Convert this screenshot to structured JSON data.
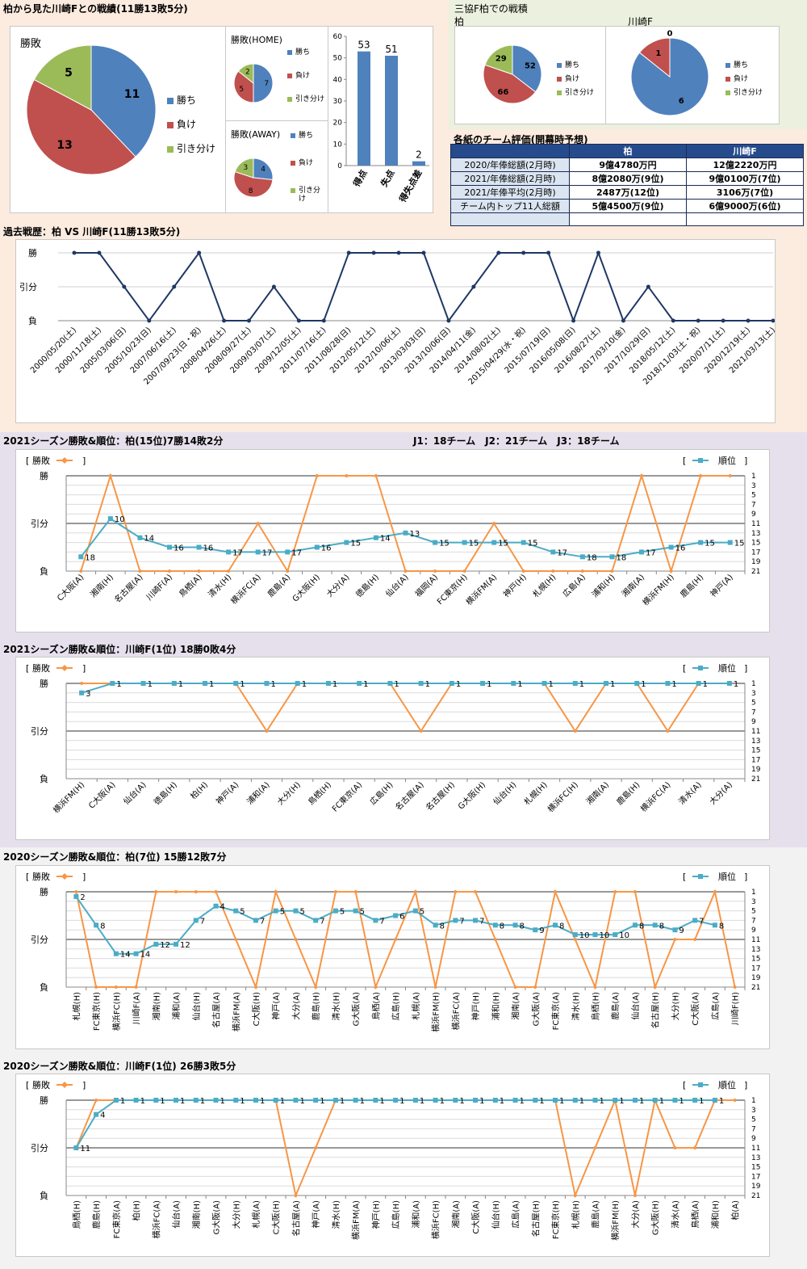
{
  "colors": {
    "win": "#4f81bd",
    "loss": "#c0504d",
    "draw": "#9bbb59",
    "result_line": "#f79646",
    "rank_line": "#4bacc6",
    "h2h_line": "#1f3864",
    "bar": "#4f81bd"
  },
  "header": {
    "title_left": "柏から見た川崎Fとの戦績(11勝13敗5分)",
    "title_right": "三協F柏での戦積",
    "kashiwa_label": "柏",
    "kawasaki_label": "川崎F"
  },
  "eval": {
    "title": "各紙のチーム評価(開幕時予想)",
    "headers": [
      "柏",
      "川崎F"
    ],
    "rows": [
      {
        "label": "2020/年俸総額(2月時)",
        "kashiwa": "9億4780万円",
        "kawasaki": "12億2220万円"
      },
      {
        "label": "2021/年俸総額(2月時)",
        "kashiwa": "8億2080万(9位)",
        "kawasaki": "9億0100万(7位)"
      },
      {
        "label": "2021/年俸平均(2月時)",
        "kashiwa": "2487万(12位)",
        "kawasaki": "3106万(7位)"
      },
      {
        "label": "チーム内トップ11人総額",
        "kashiwa": "5億4500万(9位)",
        "kawasaki": "6億9000万(6位)"
      },
      {
        "label": "",
        "kashiwa": "",
        "kawasaki": ""
      }
    ]
  },
  "sections": {
    "h2h_title": "過去戦歴：柏 VS 川崎F(11勝13敗5分)",
    "s1_title": "2021シーズン勝敗&順位：柏(15位)7勝14敗2分",
    "s1_note": "J1：18チーム　J2：21チーム　J3：18チーム",
    "s2_title": "2021シーズン勝敗&順位：川崎F(1位) 18勝0敗4分",
    "s3_title": "2020シーズン勝敗&順位：柏(7位) 15勝12敗7分",
    "s4_title": "2020シーズン勝敗&順位：川崎F(1位) 26勝3敗5分"
  },
  "legend": {
    "result": "勝敗",
    "rank": "順位",
    "win": "勝ち",
    "loss": "負け",
    "draw": "引き分け",
    "draw_wrapped": [
      "引き分",
      "け"
    ]
  },
  "result_axis": [
    "勝",
    "引分",
    "負"
  ],
  "rank_ticks": [
    "1",
    "3",
    "5",
    "7",
    "9",
    "11",
    "13",
    "15",
    "17",
    "19",
    "21"
  ],
  "chart_data": [
    {
      "type": "pie",
      "title": "勝敗",
      "labels": [
        "勝ち",
        "負け",
        "引き分け"
      ],
      "values": [
        11,
        13,
        5
      ]
    },
    {
      "type": "pie",
      "title": "勝敗(HOME)",
      "labels": [
        "勝ち",
        "負け",
        "引き分け"
      ],
      "values": [
        7,
        5,
        2
      ]
    },
    {
      "type": "pie",
      "title": "勝敗(AWAY)",
      "labels": [
        "勝ち",
        "負け",
        "引き分け"
      ],
      "values": [
        4,
        8,
        3
      ]
    },
    {
      "type": "bar",
      "categories": [
        "得点",
        "失点",
        "得失点差"
      ],
      "values": [
        53,
        51,
        2
      ],
      "ylim": [
        0,
        60
      ]
    },
    {
      "type": "pie",
      "title": "柏",
      "labels": [
        "勝ち",
        "負け",
        "引き分け"
      ],
      "values": [
        52,
        66,
        29
      ]
    },
    {
      "type": "pie",
      "title": "川崎F",
      "labels": [
        "勝ち",
        "負け",
        "引き分け"
      ],
      "values": [
        6,
        1,
        0
      ]
    },
    {
      "type": "line",
      "title": "過去戦歴：柏 VS 川崎F(11勝13敗5分)",
      "x": [
        "2000/05/20(土)",
        "2000/11/18(土)",
        "2005/03/06(日)",
        "2005/10/23(日)",
        "2007/06/16(土)",
        "2007/09/23(日・祝)",
        "2008/04/26(土)",
        "2008/09/27(土)",
        "2009/03/07(土)",
        "2009/12/05(土)",
        "2011/07/16(土)",
        "2011/08/28(日)",
        "2012/05/12(土)",
        "2012/10/06(土)",
        "2013/03/03(日)",
        "2013/10/06(日)",
        "2014/04/11(金)",
        "2014/08/02(土)",
        "2015/04/29(水・祝)",
        "2015/07/19(日)",
        "2016/05/08(日)",
        "2016/08/27(土)",
        "2017/03/10(金)",
        "2017/10/29(日)",
        "2018/05/12(土)",
        "2018/11/03(土・祝)",
        "2020/07/11(土)",
        "2020/12/19(土)",
        "2021/03/13(土)"
      ],
      "results": [
        "勝",
        "勝",
        "引分",
        "負",
        "引分",
        "勝",
        "負",
        "負",
        "引分",
        "負",
        "負",
        "勝",
        "勝",
        "勝",
        "勝",
        "負",
        "引分",
        "勝",
        "勝",
        "勝",
        "負",
        "勝",
        "負",
        "引分",
        "負",
        "負",
        "負",
        "負",
        "負"
      ]
    },
    {
      "type": "line",
      "title": "2021シーズン勝敗&順位：柏(15位)7勝14敗2分",
      "x": [
        "C大阪(A)",
        "湘南(H)",
        "名古屋(A)",
        "川崎F(A)",
        "鳥栖(A)",
        "清水(H)",
        "横浜FC(A)",
        "鹿島(A)",
        "G大阪(H)",
        "大分(A)",
        "徳島(H)",
        "仙台(A)",
        "福岡(A)",
        "FC東京(H)",
        "横浜FM(A)",
        "神戸(H)",
        "札幌(H)",
        "広島(A)",
        "浦和(H)",
        "湘南(A)",
        "横浜FM(H)",
        "鹿島(H)",
        "神戸(A)"
      ],
      "series": [
        {
          "name": "勝敗",
          "values": [
            "負",
            "勝",
            "負",
            "負",
            "負",
            "負",
            "引分",
            "負",
            "勝",
            "勝",
            "勝",
            "負",
            "負",
            "負",
            "引分",
            "負",
            "負",
            "負",
            "負",
            "勝",
            "負",
            "勝",
            "勝"
          ]
        },
        {
          "name": "順位",
          "values": [
            18,
            10,
            14,
            16,
            16,
            17,
            17,
            17,
            16,
            15,
            14,
            13,
            15,
            15,
            15,
            15,
            17,
            18,
            18,
            17,
            16,
            15,
            15
          ]
        }
      ]
    },
    {
      "type": "line",
      "title": "2021シーズン勝敗&順位：川崎F(1位) 18勝0敗4分",
      "x": [
        "横浜FM(H)",
        "C大阪(A)",
        "仙台(A)",
        "徳島(H)",
        "柏(H)",
        "神戸(A)",
        "浦和(A)",
        "大分(H)",
        "鳥栖(H)",
        "FC東京(A)",
        "広島(H)",
        "名古屋(A)",
        "名古屋(H)",
        "G大阪(H)",
        "仙台(H)",
        "札幌(H)",
        "横浜FC(H)",
        "湘南(A)",
        "鹿島(H)",
        "横浜FC(A)",
        "清水(A)",
        "大分(A)"
      ],
      "series": [
        {
          "name": "勝敗",
          "values": [
            "勝",
            "勝",
            "勝",
            "勝",
            "勝",
            "勝",
            "引分",
            "勝",
            "勝",
            "勝",
            "勝",
            "引分",
            "勝",
            "勝",
            "勝",
            "勝",
            "引分",
            "勝",
            "勝",
            "引分",
            "勝",
            "勝"
          ]
        },
        {
          "name": "順位",
          "values": [
            3,
            1,
            1,
            1,
            1,
            1,
            1,
            1,
            1,
            1,
            1,
            1,
            1,
            1,
            1,
            1,
            1,
            1,
            1,
            1,
            1,
            1
          ]
        }
      ]
    },
    {
      "type": "line",
      "title": "2020シーズン勝敗&順位：柏(7位) 15勝12敗7分",
      "x": [
        "札幌(H)",
        "FC東京(H)",
        "横浜FC(H)",
        "川崎F(A)",
        "湘南(H)",
        "浦和(A)",
        "仙台(H)",
        "名古屋(A)",
        "横浜FM(A)",
        "C大阪(H)",
        "神戸(A)",
        "大分(A)",
        "鹿島(H)",
        "清水(H)",
        "G大阪(A)",
        "鳥栖(A)",
        "広島(H)",
        "札幌(A)",
        "横浜FM(H)",
        "横浜FC(A)",
        "神戸(H)",
        "浦和(H)",
        "湘南(A)",
        "G大阪(A)",
        "FC東京(A)",
        "清水(H)",
        "鳥栖(H)",
        "鹿島(A)",
        "仙台(A)",
        "名古屋(H)",
        "大分(H)",
        "C大阪(A)",
        "広島(A)",
        "川崎F(H)"
      ],
      "series": [
        {
          "name": "勝敗",
          "values": [
            "勝",
            "負",
            "負",
            "負",
            "勝",
            "勝",
            "勝",
            "勝",
            "引分",
            "負",
            "勝",
            "引分",
            "負",
            "勝",
            "勝",
            "負",
            "引分",
            "勝",
            "負",
            "勝",
            "勝",
            "引分",
            "負",
            "負",
            "勝",
            "引分",
            "負",
            "勝",
            "勝",
            "負",
            "引分",
            "引分",
            "勝",
            "負"
          ]
        },
        {
          "name": "順位",
          "values": [
            2,
            8,
            14,
            14,
            12,
            12,
            7,
            4,
            5,
            7,
            5,
            5,
            7,
            5,
            5,
            7,
            6,
            5,
            8,
            7,
            7,
            8,
            8,
            9,
            8,
            10,
            10,
            10,
            8,
            8,
            9,
            7,
            8,
            null
          ]
        }
      ]
    },
    {
      "type": "line",
      "title": "2020シーズン勝敗&順位：川崎F(1位) 26勝3敗5分",
      "x": [
        "鳥栖(H)",
        "鹿島(H)",
        "FC東京(A)",
        "柏(H)",
        "横浜FC(A)",
        "仙台(A)",
        "湘南(H)",
        "G大阪(A)",
        "大分(H)",
        "札幌(A)",
        "C大阪(H)",
        "名古屋(A)",
        "神戸(A)",
        "清水(H)",
        "横浜FM(A)",
        "神戸(H)",
        "広島(H)",
        "浦和(A)",
        "横浜FC(H)",
        "湘南(A)",
        "C大阪(A)",
        "仙台(H)",
        "広島(A)",
        "名古屋(H)",
        "FC東京(H)",
        "札幌(H)",
        "鹿島(A)",
        "横浜FM(H)",
        "大分(A)",
        "G大阪(H)",
        "清水(A)",
        "鳥栖(A)",
        "浦和(H)",
        "柏(A)"
      ],
      "series": [
        {
          "name": "勝敗",
          "values": [
            "引分",
            "勝",
            "勝",
            "勝",
            "勝",
            "勝",
            "勝",
            "勝",
            "勝",
            "勝",
            "勝",
            "負",
            "引分",
            "勝",
            "勝",
            "勝",
            "勝",
            "勝",
            "勝",
            "勝",
            "勝",
            "勝",
            "勝",
            "勝",
            "勝",
            "負",
            "引分",
            "勝",
            "負",
            "勝",
            "引分",
            "引分",
            "勝",
            "勝"
          ]
        },
        {
          "name": "順位",
          "values": [
            11,
            4,
            1,
            1,
            1,
            1,
            1,
            1,
            1,
            1,
            1,
            1,
            1,
            1,
            1,
            1,
            1,
            1,
            1,
            1,
            1,
            1,
            1,
            1,
            1,
            1,
            1,
            1,
            1,
            1,
            1,
            1,
            1,
            null
          ]
        }
      ]
    }
  ]
}
